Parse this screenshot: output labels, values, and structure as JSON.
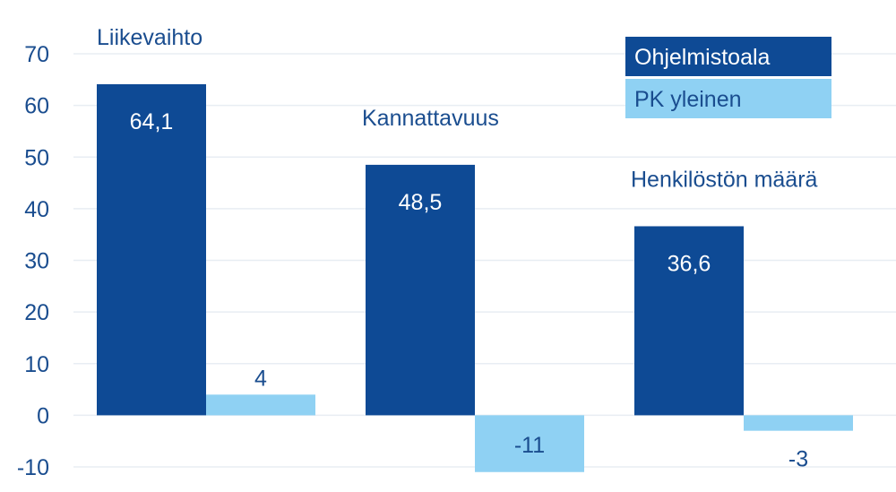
{
  "chart_data": {
    "type": "bar",
    "categories": [
      "Liikevaihto",
      "Kannattavuus",
      "Henkilöstön määrä"
    ],
    "series": [
      {
        "name": "Ohjelmistoala",
        "values": [
          64.1,
          48.5,
          36.6
        ],
        "labels": [
          "64,1",
          "48,5",
          "36,6"
        ],
        "color": "#0e4a95"
      },
      {
        "name": "PK yleinen",
        "values": [
          4,
          -11,
          -3
        ],
        "labels": [
          "4",
          "-11",
          "-3"
        ],
        "color": "#8fd1f3"
      }
    ],
    "ylim": [
      -10,
      70
    ],
    "yticks": [
      70,
      60,
      50,
      40,
      30,
      20,
      10,
      0,
      -10
    ],
    "grid": true,
    "legend_position": "top-right",
    "colors": {
      "text": "#1a4d8f",
      "inside_label": "#ffffff",
      "grid": "#e8edf3"
    }
  }
}
